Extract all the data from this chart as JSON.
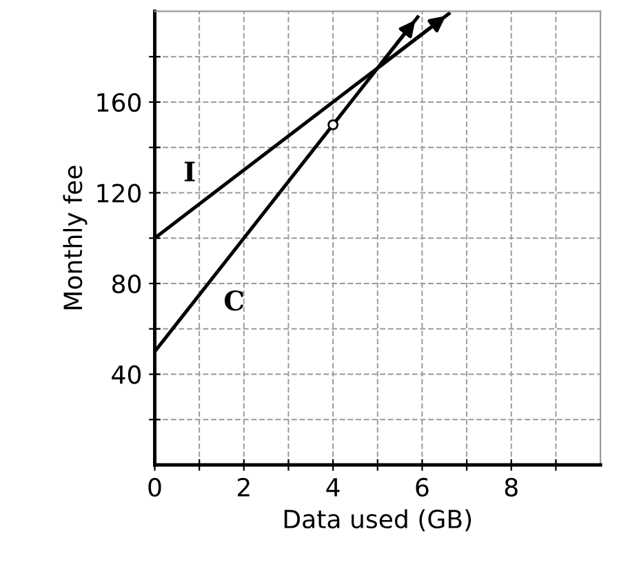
{
  "chart_data": {
    "type": "line",
    "xlabel": "Data used (GB)",
    "ylabel": "Monthly fee",
    "xlim": [
      0,
      10
    ],
    "ylim": [
      0,
      200
    ],
    "xticks": [
      {
        "value": 0,
        "label": "0"
      },
      {
        "value": 1,
        "label": null
      },
      2,
      {
        "value": 3,
        "label": null
      },
      4,
      {
        "value": 5,
        "label": null
      },
      6,
      {
        "value": 7,
        "label": null
      },
      8,
      {
        "value": 9,
        "label": null
      }
    ],
    "yticks": [
      {
        "value": 20,
        "label": null
      },
      40,
      {
        "value": 60,
        "label": null
      },
      80,
      {
        "value": 100,
        "label": null
      },
      120,
      {
        "value": 140,
        "label": null
      },
      160,
      {
        "value": 180,
        "label": null
      }
    ],
    "grid": true,
    "series": [
      {
        "name": "I",
        "color": "#000000",
        "x": [
          0,
          1.33,
          5,
          6.6
        ],
        "values": [
          100,
          120,
          175,
          199
        ]
      },
      {
        "name": "C",
        "color": "#000000",
        "x": [
          0,
          1.2,
          4,
          5,
          5.9
        ],
        "values": [
          50,
          80,
          150,
          175,
          197.5
        ]
      },
      {
        "type": "scatter",
        "color": "#000000",
        "marker": "circle",
        "x": [
          4
        ],
        "values": [
          150
        ]
      }
    ]
  }
}
